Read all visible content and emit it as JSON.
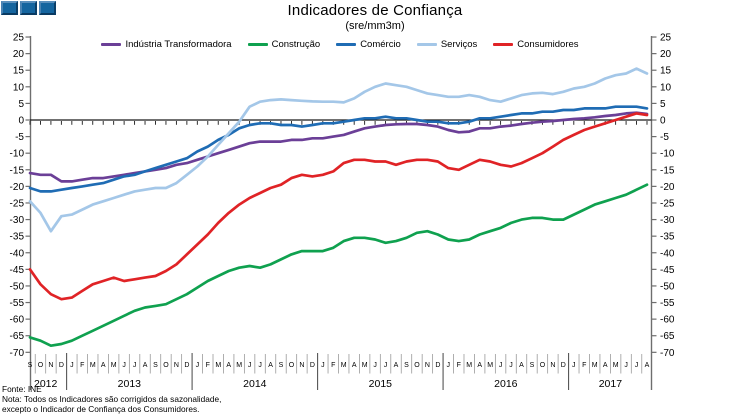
{
  "header": {
    "title": "Indicadores de Confiança",
    "subtitle": "(sre/mm3m)"
  },
  "chart_data": {
    "type": "line",
    "title": "Indicadores de Confiança",
    "subtitle": "(sre/mm3m)",
    "y_axis": {
      "min": -70,
      "max": 25,
      "step": 5,
      "baseline": 0,
      "mirrored_right": true
    },
    "x_axis": {
      "month_letters": [
        "S",
        "O",
        "N",
        "D",
        "J",
        "F",
        "M",
        "A",
        "M",
        "J",
        "J",
        "A",
        "S",
        "O",
        "N",
        "D",
        "J",
        "F",
        "M",
        "A",
        "M",
        "J",
        "J",
        "A",
        "S",
        "O",
        "N",
        "D",
        "J",
        "F",
        "M",
        "A",
        "M",
        "J",
        "J",
        "A",
        "S",
        "O",
        "N",
        "D",
        "J",
        "F",
        "M",
        "A",
        "M",
        "J",
        "J",
        "A",
        "S",
        "O",
        "N",
        "D",
        "J",
        "F",
        "M",
        "A",
        "M",
        "J",
        "J",
        "A"
      ],
      "years": [
        {
          "label": "2012",
          "start_index": 0,
          "months": 4
        },
        {
          "label": "2013",
          "start_index": 4,
          "months": 12
        },
        {
          "label": "2014",
          "start_index": 16,
          "months": 12
        },
        {
          "label": "2015",
          "start_index": 28,
          "months": 12
        },
        {
          "label": "2016",
          "start_index": 40,
          "months": 12
        },
        {
          "label": "2017",
          "start_index": 52,
          "months": 8
        }
      ]
    },
    "series": [
      {
        "name": "Indústria Transformadora",
        "color": "#6B3F97",
        "values": [
          -16,
          -16.5,
          -16.5,
          -18.5,
          -18.5,
          -18,
          -17.5,
          -17.5,
          -17,
          -16.5,
          -16,
          -15.5,
          -15,
          -14.5,
          -13.5,
          -13,
          -12,
          -11,
          -10,
          -9,
          -8,
          -7,
          -6.5,
          -6.5,
          -6.5,
          -6,
          -6,
          -5.5,
          -5.5,
          -5,
          -4.5,
          -3.5,
          -2.5,
          -2,
          -1.5,
          -1.3,
          -1.2,
          -1.2,
          -1.5,
          -2,
          -3,
          -3.7,
          -3.5,
          -2.5,
          -2.5,
          -2,
          -1.7,
          -1.2,
          -0.8,
          -0.5,
          -0.3,
          0,
          0.3,
          0.5,
          0.8,
          1.2,
          1.5,
          2,
          2.2,
          1.8
        ]
      },
      {
        "name": "Construção",
        "color": "#0FA14F",
        "values": [
          -65.5,
          -66.5,
          -68,
          -67.5,
          -66.5,
          -65,
          -63.5,
          -62,
          -60.5,
          -59,
          -57.5,
          -56.5,
          -56,
          -55.5,
          -54,
          -52.5,
          -50.5,
          -48.5,
          -47,
          -45.5,
          -44.5,
          -44,
          -44.5,
          -43.5,
          -42,
          -40.5,
          -39.5,
          -39.5,
          -39.5,
          -38.5,
          -36.5,
          -35.5,
          -35.5,
          -36,
          -37,
          -36.5,
          -35.5,
          -34,
          -33.5,
          -34.5,
          -36,
          -36.5,
          -36,
          -34.5,
          -33.5,
          -32.5,
          -31,
          -30,
          -29.5,
          -29.5,
          -30,
          -30,
          -28.5,
          -27,
          -25.5,
          -24.5,
          -23.5,
          -22.5,
          -21,
          -19.5
        ]
      },
      {
        "name": "Comércio",
        "color": "#1F6CB4",
        "values": [
          -20.5,
          -21.5,
          -21.5,
          -21,
          -20.5,
          -20,
          -19.5,
          -19,
          -18,
          -17,
          -16.5,
          -15.5,
          -14.5,
          -13.5,
          -12.5,
          -11.5,
          -9.5,
          -8,
          -6,
          -4.5,
          -2.5,
          -1.5,
          -1,
          -1,
          -1.5,
          -1.5,
          -2,
          -1.5,
          -1,
          -1,
          -0.5,
          0,
          0.5,
          0.5,
          1,
          0.5,
          0.5,
          0,
          -0.5,
          -0.5,
          -1,
          -1,
          -0.5,
          0.5,
          0.5,
          1,
          1.5,
          2,
          2,
          2.5,
          2.5,
          3,
          3,
          3.5,
          3.5,
          3.5,
          4,
          4,
          4,
          3.5
        ]
      },
      {
        "name": "Serviços",
        "color": "#A4C7E8",
        "values": [
          -24.5,
          -28,
          -33.5,
          -29,
          -28.5,
          -27,
          -25.5,
          -24.5,
          -23.5,
          -22.5,
          -21.5,
          -21,
          -20.5,
          -20.5,
          -19,
          -16.5,
          -14,
          -11,
          -7.5,
          -4,
          -0.5,
          4,
          5.5,
          6,
          6.2,
          6,
          5.8,
          5.6,
          5.5,
          5.5,
          5.3,
          6.5,
          8.5,
          10,
          11,
          10.5,
          10,
          9,
          8,
          7.5,
          7,
          7,
          7.5,
          7,
          6,
          5.5,
          6.5,
          7.5,
          8,
          8.2,
          7.8,
          8.5,
          9.5,
          10,
          11,
          12.5,
          13.5,
          14,
          15.5,
          14
        ]
      },
      {
        "name": "Consumidores",
        "color": "#E02326",
        "values": [
          -45,
          -49.5,
          -52.5,
          -54,
          -53.5,
          -51.5,
          -49.5,
          -48.5,
          -47.5,
          -48.5,
          -48,
          -47.5,
          -47,
          -45.5,
          -43.5,
          -40.5,
          -37.5,
          -34.5,
          -31,
          -28,
          -25.5,
          -23.5,
          -22,
          -20.5,
          -19.5,
          -17.5,
          -16.5,
          -17,
          -16.5,
          -15.5,
          -13,
          -12,
          -12,
          -12.5,
          -12.5,
          -13.5,
          -12.5,
          -12,
          -12,
          -12.5,
          -14.5,
          -15,
          -13.5,
          -12,
          -12.5,
          -13.5,
          -14,
          -13,
          -11.5,
          -10,
          -8,
          -6,
          -4.5,
          -3,
          -2,
          -1,
          0,
          1,
          2,
          1.5
        ]
      }
    ],
    "legend_position": "top"
  },
  "footer": {
    "source": "Fonte: INE",
    "note_line1": "Nota: Todos os Indicadores são corrigidos da sazonalidade,",
    "note_line2": "excepto o Indicador de Confiança dos Consumidores."
  }
}
